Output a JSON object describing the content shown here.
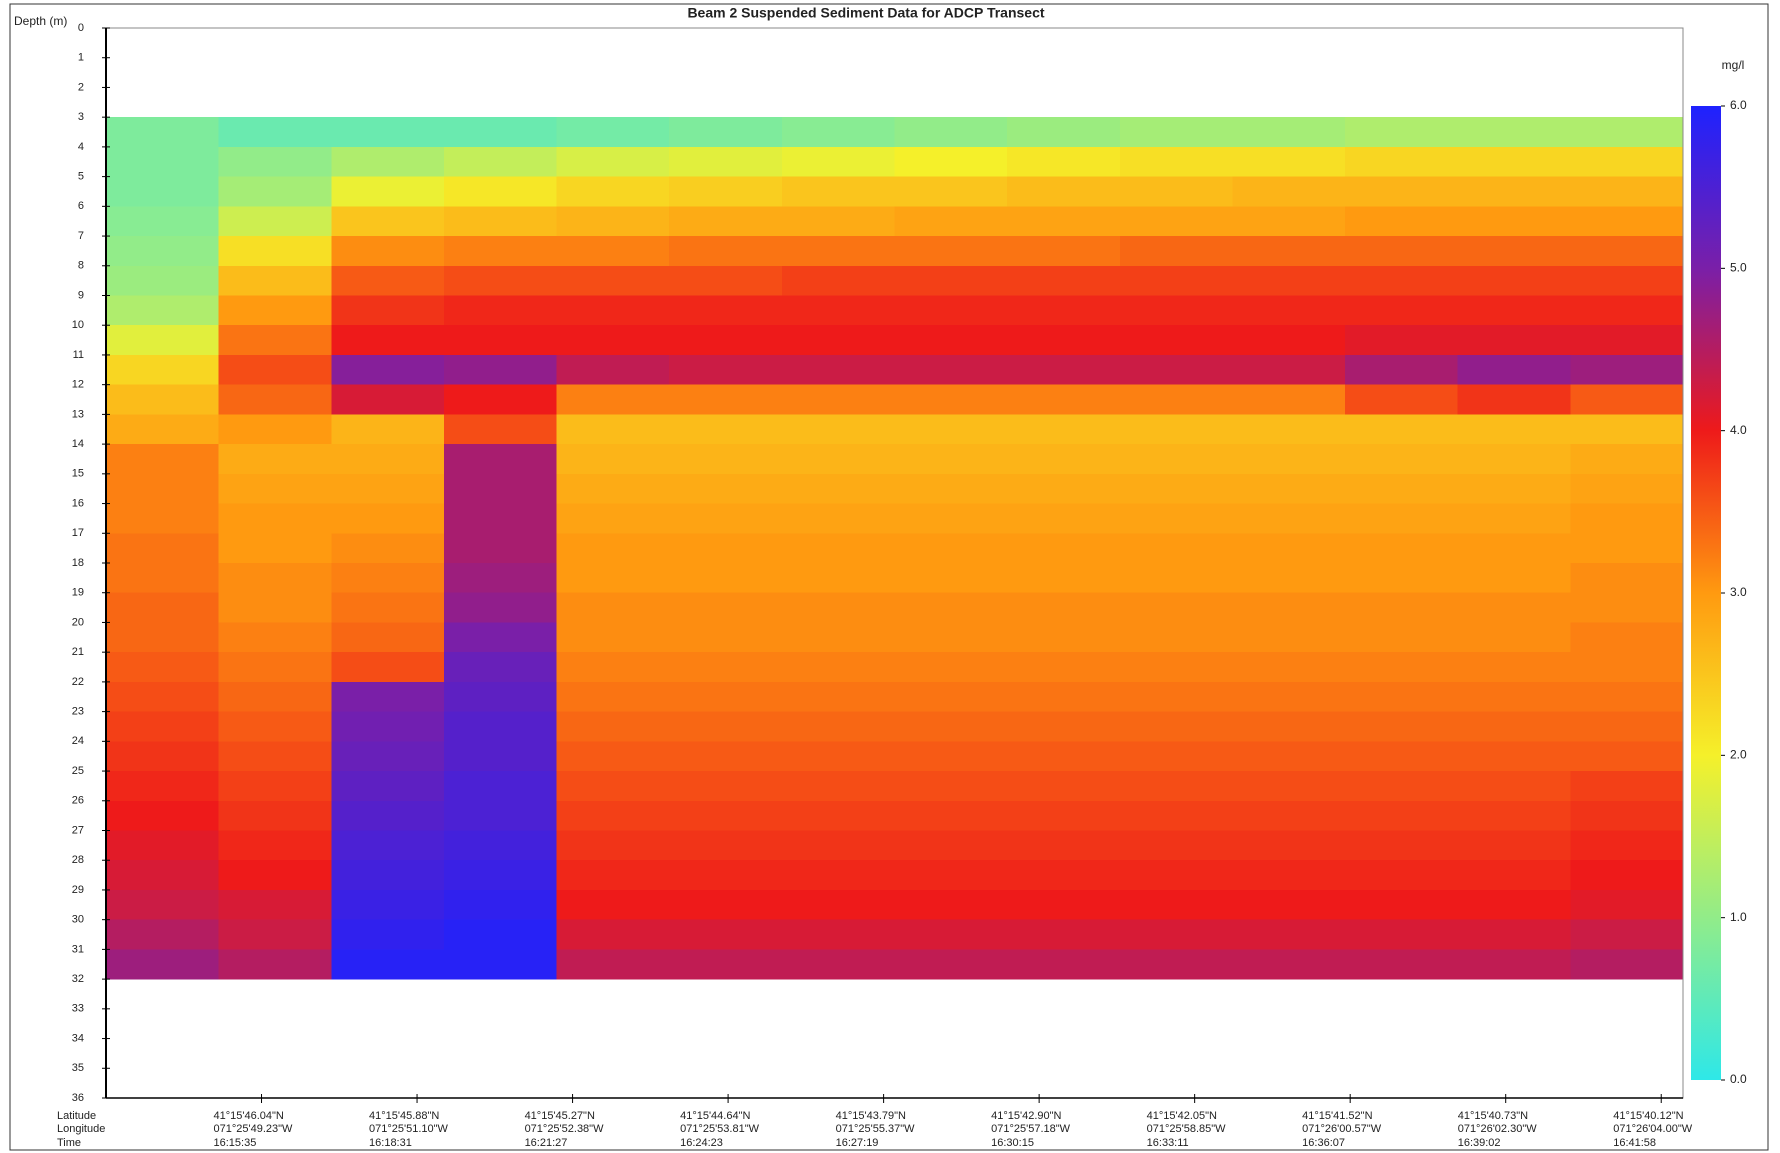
{
  "chart_data": {
    "type": "heatmap",
    "title": "Beam 2 Suspended Sediment Data for ADCP Transect",
    "y_label": "Depth (m)",
    "ylim": [
      0,
      36
    ],
    "y_inverted": true,
    "yticks": [
      0,
      1,
      2,
      3,
      4,
      5,
      6,
      7,
      8,
      9,
      10,
      11,
      12,
      13,
      14,
      15,
      16,
      17,
      18,
      19,
      20,
      21,
      22,
      23,
      24,
      25,
      26,
      27,
      28,
      29,
      30,
      31,
      32,
      33,
      34,
      35,
      36
    ],
    "y_edges": [
      3,
      4,
      5,
      6,
      7,
      8,
      9,
      10,
      11,
      12,
      13,
      14,
      15,
      16,
      17,
      18,
      19,
      20,
      21,
      22,
      23,
      24,
      25,
      26,
      27,
      28,
      29,
      30,
      31,
      32
    ],
    "z": [
      [
        0.8,
        0.6,
        0.6,
        0.6,
        0.7,
        0.8,
        0.9,
        1.0,
        1.1,
        1.2,
        1.2,
        1.3,
        1.3,
        1.3
      ],
      [
        0.8,
        1.0,
        1.3,
        1.5,
        1.7,
        1.8,
        1.9,
        2.0,
        2.1,
        2.2,
        2.2,
        2.3,
        2.3,
        2.3
      ],
      [
        0.8,
        1.2,
        1.9,
        2.1,
        2.3,
        2.4,
        2.5,
        2.5,
        2.6,
        2.6,
        2.7,
        2.7,
        2.7,
        2.7
      ],
      [
        0.9,
        1.6,
        2.5,
        2.6,
        2.7,
        2.8,
        2.8,
        2.9,
        2.9,
        2.9,
        2.9,
        3.0,
        3.0,
        3.0
      ],
      [
        1.0,
        2.2,
        3.1,
        3.2,
        3.2,
        3.3,
        3.3,
        3.3,
        3.3,
        3.4,
        3.4,
        3.4,
        3.4,
        3.4
      ],
      [
        1.1,
        2.6,
        3.5,
        3.6,
        3.6,
        3.6,
        3.7,
        3.7,
        3.7,
        3.7,
        3.7,
        3.7,
        3.7,
        3.7
      ],
      [
        1.3,
        3.0,
        3.8,
        3.9,
        3.9,
        3.9,
        3.9,
        3.9,
        3.9,
        3.9,
        3.9,
        3.9,
        3.9,
        3.9
      ],
      [
        1.8,
        3.3,
        4.0,
        4.0,
        4.0,
        4.0,
        4.0,
        4.0,
        4.0,
        4.0,
        4.0,
        4.1,
        4.1,
        4.1
      ],
      [
        2.3,
        3.6,
        4.9,
        4.8,
        4.4,
        4.3,
        4.3,
        4.3,
        4.3,
        4.3,
        4.3,
        4.6,
        4.8,
        4.7
      ],
      [
        2.6,
        3.4,
        4.2,
        4.0,
        3.2,
        3.2,
        3.2,
        3.2,
        3.2,
        3.2,
        3.2,
        3.6,
        3.8,
        3.5
      ],
      [
        2.8,
        3.0,
        2.7,
        3.6,
        2.6,
        2.6,
        2.6,
        2.6,
        2.6,
        2.6,
        2.6,
        2.6,
        2.6,
        2.6
      ],
      [
        3.2,
        2.8,
        2.8,
        4.6,
        2.7,
        2.7,
        2.7,
        2.7,
        2.7,
        2.7,
        2.7,
        2.7,
        2.7,
        2.8
      ],
      [
        3.2,
        2.9,
        2.9,
        4.6,
        2.8,
        2.8,
        2.8,
        2.8,
        2.8,
        2.8,
        2.8,
        2.8,
        2.8,
        2.9
      ],
      [
        3.2,
        3.0,
        3.0,
        4.6,
        2.9,
        2.9,
        2.9,
        2.9,
        2.9,
        2.9,
        2.9,
        2.9,
        2.9,
        3.0
      ],
      [
        3.3,
        3.0,
        3.1,
        4.6,
        3.0,
        3.0,
        3.0,
        3.0,
        3.0,
        3.0,
        3.0,
        3.0,
        3.0,
        3.0
      ],
      [
        3.3,
        3.1,
        3.2,
        4.7,
        3.0,
        3.0,
        3.0,
        3.0,
        3.0,
        3.0,
        3.0,
        3.0,
        3.0,
        3.1
      ],
      [
        3.4,
        3.1,
        3.3,
        4.8,
        3.1,
        3.1,
        3.1,
        3.1,
        3.1,
        3.1,
        3.1,
        3.1,
        3.1,
        3.1
      ],
      [
        3.4,
        3.2,
        3.4,
        5.0,
        3.1,
        3.1,
        3.1,
        3.1,
        3.1,
        3.1,
        3.1,
        3.1,
        3.1,
        3.2
      ],
      [
        3.5,
        3.3,
        3.6,
        5.2,
        3.2,
        3.2,
        3.2,
        3.2,
        3.2,
        3.2,
        3.2,
        3.2,
        3.2,
        3.2
      ],
      [
        3.6,
        3.4,
        5.0,
        5.3,
        3.3,
        3.3,
        3.3,
        3.3,
        3.3,
        3.3,
        3.3,
        3.3,
        3.3,
        3.3
      ],
      [
        3.7,
        3.5,
        5.1,
        5.4,
        3.4,
        3.4,
        3.4,
        3.4,
        3.4,
        3.4,
        3.4,
        3.4,
        3.4,
        3.4
      ],
      [
        3.8,
        3.6,
        5.2,
        5.4,
        3.5,
        3.5,
        3.5,
        3.5,
        3.5,
        3.5,
        3.5,
        3.5,
        3.5,
        3.5
      ],
      [
        3.9,
        3.7,
        5.3,
        5.5,
        3.6,
        3.6,
        3.6,
        3.6,
        3.6,
        3.6,
        3.6,
        3.6,
        3.6,
        3.7
      ],
      [
        4.0,
        3.8,
        5.4,
        5.5,
        3.7,
        3.7,
        3.7,
        3.7,
        3.7,
        3.7,
        3.7,
        3.7,
        3.7,
        3.8
      ],
      [
        4.1,
        3.9,
        5.5,
        5.6,
        3.8,
        3.8,
        3.8,
        3.8,
        3.8,
        3.8,
        3.8,
        3.8,
        3.8,
        3.9
      ],
      [
        4.2,
        4.0,
        5.6,
        5.7,
        3.9,
        3.9,
        3.9,
        3.9,
        3.9,
        3.9,
        3.9,
        3.9,
        3.9,
        4.0
      ],
      [
        4.3,
        4.2,
        5.7,
        5.8,
        4.0,
        4.0,
        4.0,
        4.0,
        4.0,
        4.0,
        4.0,
        4.0,
        4.0,
        4.1
      ],
      [
        4.5,
        4.3,
        5.8,
        5.9,
        4.2,
        4.2,
        4.2,
        4.2,
        4.2,
        4.2,
        4.2,
        4.2,
        4.2,
        4.3
      ],
      [
        4.7,
        4.5,
        5.9,
        5.9,
        4.4,
        4.4,
        4.4,
        4.4,
        4.4,
        4.4,
        4.4,
        4.4,
        4.4,
        4.5
      ]
    ],
    "colorscale": [
      [
        0,
        "#2ee8e8"
      ],
      [
        2,
        "#f5f02a"
      ],
      [
        3,
        "#ff9a10"
      ],
      [
        4,
        "#ee1a1a"
      ],
      [
        5,
        "#7a1fa8"
      ],
      [
        6,
        "#1e22ff"
      ]
    ],
    "colorbar": {
      "label": "mg/l",
      "lim": [
        0,
        6
      ],
      "ticks": [
        {
          "value": 0,
          "label": "0.0"
        },
        {
          "value": 1,
          "label": "1.0"
        },
        {
          "value": 2,
          "label": "2.0"
        },
        {
          "value": 3,
          "label": "3.0"
        },
        {
          "value": 4,
          "label": "4.0"
        },
        {
          "value": 5,
          "label": "5.0"
        },
        {
          "value": 6,
          "label": "6.0"
        }
      ]
    },
    "x_row_names": [
      "Latitude",
      "Longitude",
      "Time"
    ],
    "x_ticks": [
      [
        "41°15'46.04\"N",
        "071°25'49.23\"W",
        "16:15:35"
      ],
      [
        "41°15'45.88\"N",
        "071°25'51.10\"W",
        "16:18:31"
      ],
      [
        "41°15'45.27\"N",
        "071°25'52.38\"W",
        "16:21:27"
      ],
      [
        "41°15'44.64\"N",
        "071°25'53.81\"W",
        "16:24:23"
      ],
      [
        "41°15'43.79\"N",
        "071°25'55.37\"W",
        "16:27:19"
      ],
      [
        "41°15'42.90\"N",
        "071°25'57.18\"W",
        "16:30:15"
      ],
      [
        "41°15'42.05\"N",
        "071°25'58.85\"W",
        "16:33:11"
      ],
      [
        "41°15'41.52\"N",
        "071°26'00.57\"W",
        "16:36:07"
      ],
      [
        "41°15'40.73\"N",
        "071°26'02.30\"W",
        "16:39:02"
      ],
      [
        "41°15'40.12\"N",
        "071°26'04.00\"W",
        "16:41:58"
      ]
    ]
  }
}
